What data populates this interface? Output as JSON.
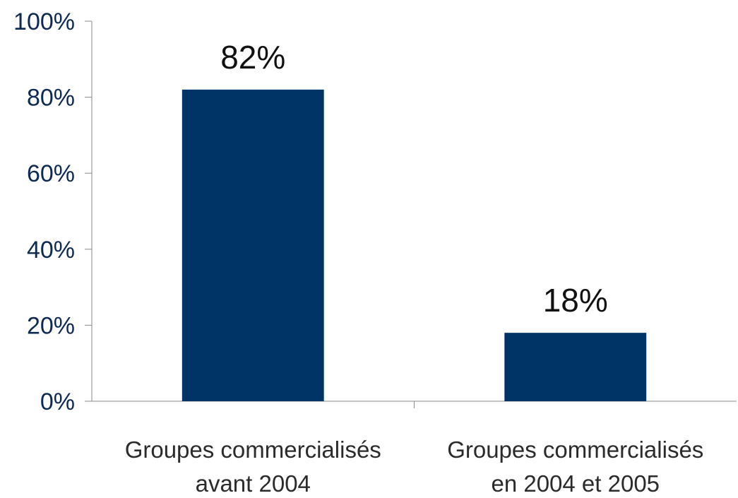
{
  "chart_data": {
    "type": "bar",
    "categories": [
      [
        "Groupes commercialisés",
        "avant 2004"
      ],
      [
        "Groupes commercialisés",
        "en 2004 et 2005"
      ]
    ],
    "values": [
      82,
      18
    ],
    "data_labels": [
      "82%",
      "18%"
    ],
    "ylim": [
      0,
      100
    ],
    "yticks": [
      0,
      20,
      40,
      60,
      80,
      100
    ],
    "ytick_labels": [
      "0%",
      "20%",
      "40%",
      "60%",
      "80%",
      "100%"
    ],
    "bar_color": "#003366",
    "grid": false,
    "legend": "none"
  }
}
